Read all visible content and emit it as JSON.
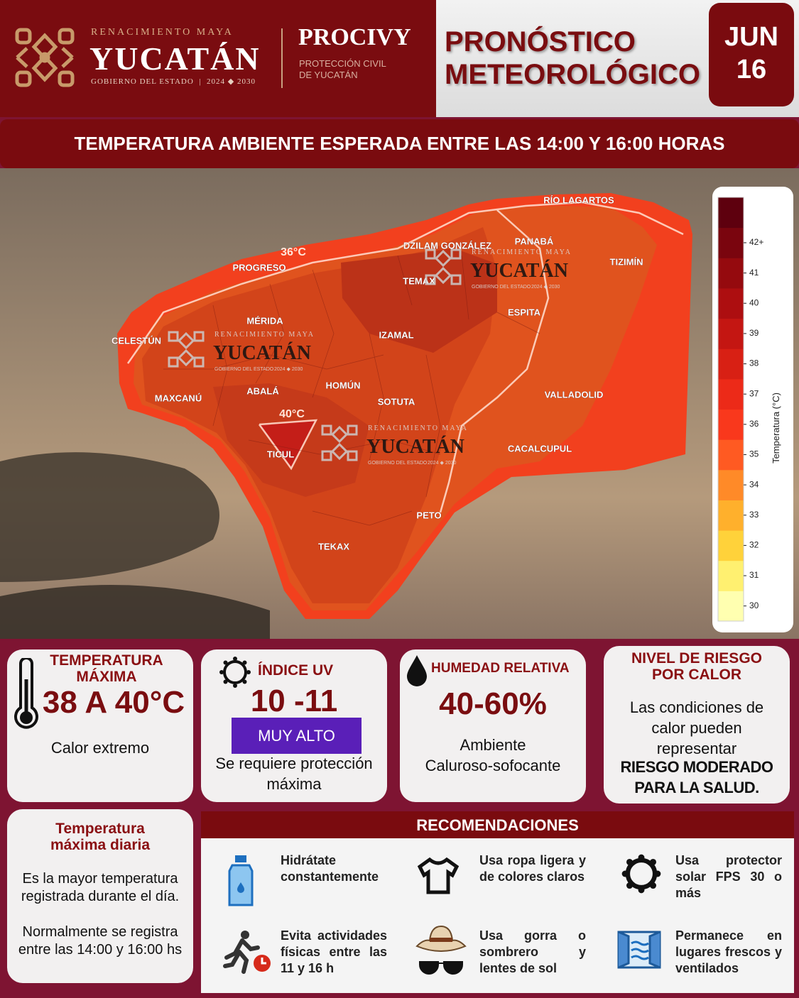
{
  "header": {
    "brand_tagline": "RENACIMIENTO MAYA",
    "brand": "YUCATÁN",
    "brand_sub": "GOBIERNO DEL ESTADO",
    "brand_years": "2024 ◆ 2030",
    "agency": "PROCIVY",
    "agency_sub_1": "PROTECCIÓN CIVIL",
    "agency_sub_2": "DE YUCATÁN",
    "title_1": "PRONÓSTICO",
    "title_2": "METEOROLÓGICO",
    "month": "JUN",
    "day": "16"
  },
  "banner": "TEMPERATURA AMBIENTE ESPERADA ENTRE LAS 14:00 Y 16:00 HORAS",
  "map": {
    "places": [
      "RÍO LAGARTOS",
      "PANABÁ",
      "DZILAM GONZÁLEZ",
      "TIZIMÍN",
      "PROGRESO",
      "TEMAX",
      "ESPITA",
      "MÉRIDA",
      "IZAMAL",
      "CELESTÚN",
      "HOMÚN",
      "ABALÁ",
      "MAXCANÚ",
      "SOTUTA",
      "VALLADOLID",
      "CACALCUPUL",
      "TICUL",
      "PETO",
      "TEKAX"
    ],
    "isotherms": [
      "36°C",
      "40°C"
    ]
  },
  "colorbar": {
    "label": "Temperatura (°C)",
    "lim": [
      29.5,
      43.5
    ],
    "ticks": [
      30,
      31,
      32,
      33,
      34,
      35,
      36,
      37,
      38,
      39,
      40,
      41,
      {
        "value": 42,
        "label": "42+"
      }
    ],
    "colors": [
      "#ffffb0",
      "#fff070",
      "#ffd23a",
      "#ffb02c",
      "#ff8a28",
      "#ff5a22",
      "#f9381c",
      "#ec2a18",
      "#d82014",
      "#c41612",
      "#ad0e10",
      "#950a0e",
      "#7a050e",
      "#5e000e"
    ]
  },
  "cards": {
    "max_temp": {
      "title": "TEMPERATURA MÁXIMA",
      "value": "38 A 40°C",
      "note": "Calor extremo"
    },
    "uv": {
      "title": "ÍNDICE UV",
      "value": "10 -11",
      "level": "MUY ALTO",
      "note": "Se requiere protección máxima"
    },
    "humidity": {
      "title": "HUMEDAD RELATIVA",
      "value": "40-60%",
      "note_1": "Ambiente",
      "note_2": "Caluroso-sofocante"
    },
    "risk": {
      "title": "NIVEL DE RIESGO POR CALOR",
      "text": "Las condiciones de calor pueden representar",
      "level": "RIESGO MODERADO PARA LA SALUD."
    },
    "definition": {
      "title": "Temperatura máxima diaria",
      "text_1": "Es la mayor temperatura registrada durante el día.",
      "text_2": "Normalmente se registra entre las 14:00 y 16:00 hs"
    }
  },
  "recommendations": {
    "title": "RECOMENDACIONES",
    "items": [
      "Hidrátate constantemente",
      "Usa ropa ligera y de colores claros",
      "Usa protector solar FPS 30 o más",
      "Evita actividades físicas entre las 11 y 16 h",
      "Usa gorra o sombrero y lentes de sol",
      "Permanece en lugares frescos y ventilados"
    ]
  }
}
